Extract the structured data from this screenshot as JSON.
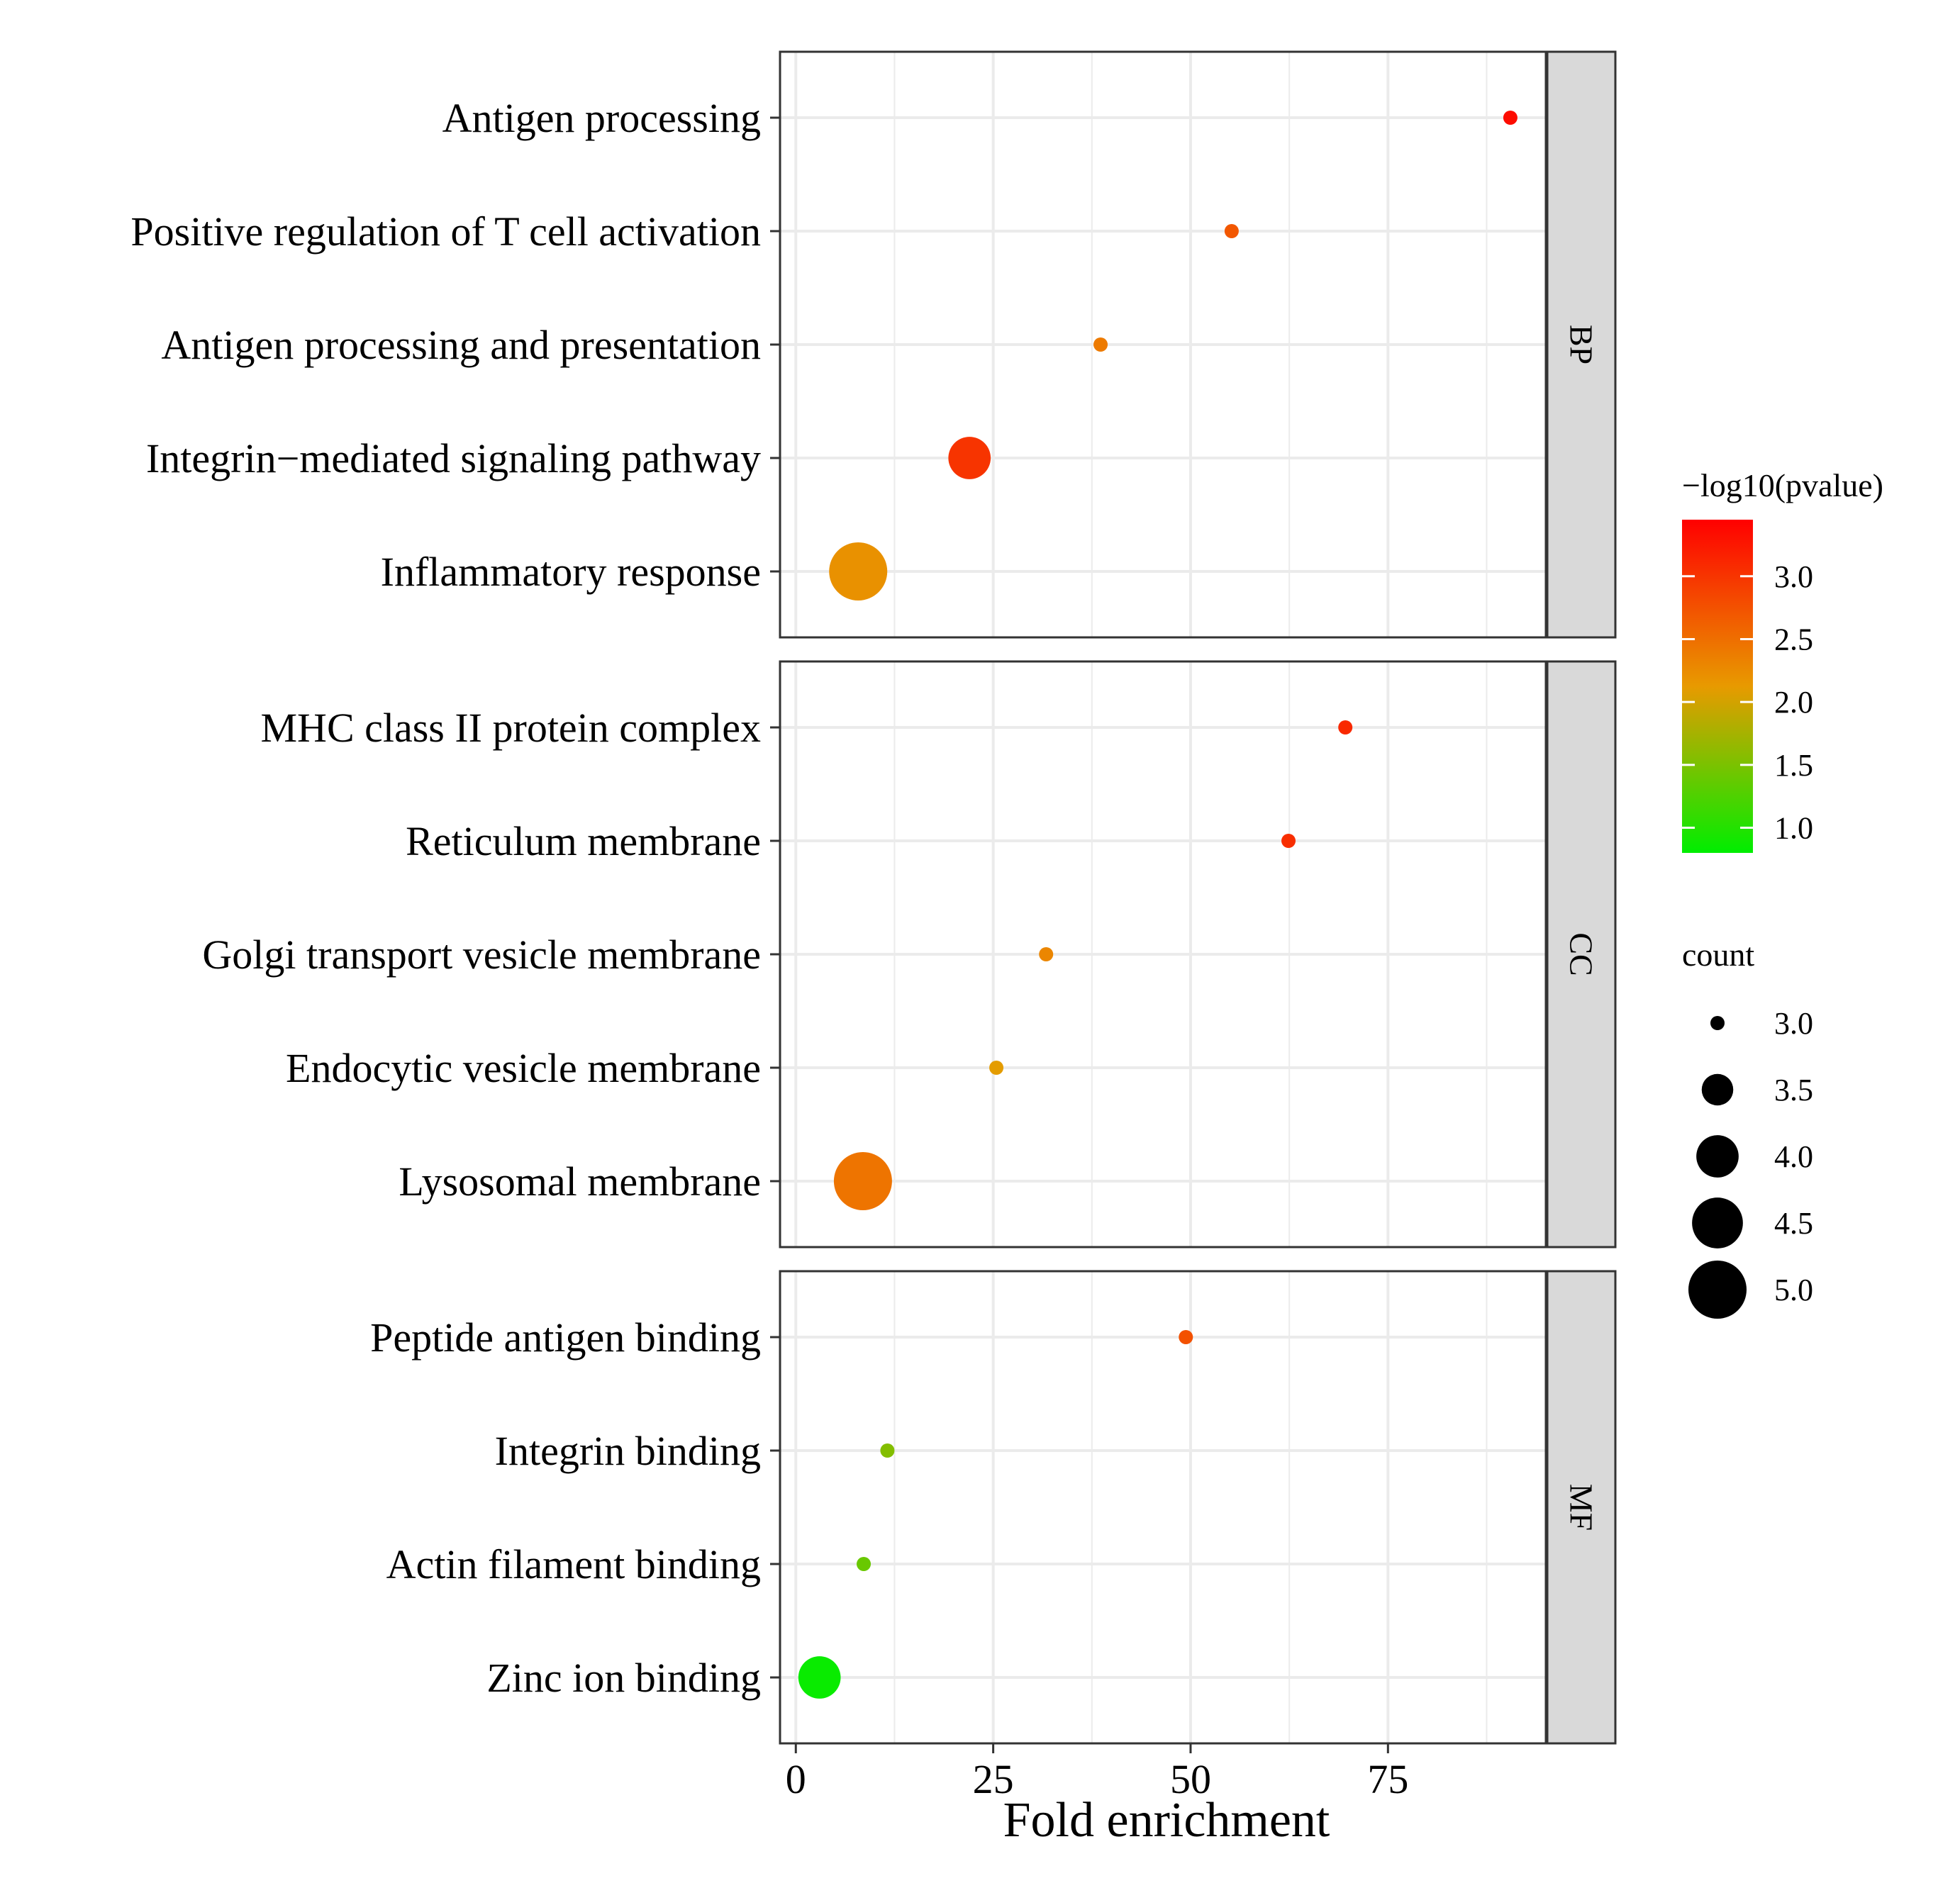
{
  "chart_data": {
    "type": "scatter",
    "xlabel": "Fold enrichment",
    "xlim": [
      -2,
      95
    ],
    "xticks": [
      0,
      25,
      50,
      75
    ],
    "facets": [
      {
        "name": "BP",
        "terms": [
          {
            "label": "Antigen processing",
            "fold_enrichment": 90.5,
            "neg_log10_pvalue": 3.35,
            "count": 3
          },
          {
            "label": "Positive regulation of T cell activation",
            "fold_enrichment": 55.2,
            "neg_log10_pvalue": 2.7,
            "count": 3
          },
          {
            "label": "Antigen processing and presentation",
            "fold_enrichment": 38.6,
            "neg_log10_pvalue": 2.4,
            "count": 3
          },
          {
            "label": "Integrin−mediated signaling pathway",
            "fold_enrichment": 22.0,
            "neg_log10_pvalue": 3.0,
            "count": 4
          },
          {
            "label": "Inflammatory response",
            "fold_enrichment": 7.9,
            "neg_log10_pvalue": 2.2,
            "count": 5
          }
        ]
      },
      {
        "name": "CC",
        "terms": [
          {
            "label": "MHC class II protein complex",
            "fold_enrichment": 69.6,
            "neg_log10_pvalue": 3.1,
            "count": 3
          },
          {
            "label": "Reticulum membrane",
            "fold_enrichment": 62.4,
            "neg_log10_pvalue": 3.05,
            "count": 3
          },
          {
            "label": "Golgi transport vesicle membrane",
            "fold_enrichment": 31.7,
            "neg_log10_pvalue": 2.3,
            "count": 3
          },
          {
            "label": "Endocytic vesicle membrane",
            "fold_enrichment": 25.4,
            "neg_log10_pvalue": 2.1,
            "count": 3
          },
          {
            "label": "Lysosomal membrane",
            "fold_enrichment": 8.5,
            "neg_log10_pvalue": 2.45,
            "count": 5
          }
        ]
      },
      {
        "name": "MF",
        "terms": [
          {
            "label": "Peptide antigen binding",
            "fold_enrichment": 49.4,
            "neg_log10_pvalue": 2.75,
            "count": 3
          },
          {
            "label": "Integrin binding",
            "fold_enrichment": 11.6,
            "neg_log10_pvalue": 1.55,
            "count": 3
          },
          {
            "label": "Actin filament binding",
            "fold_enrichment": 8.6,
            "neg_log10_pvalue": 1.4,
            "count": 3
          },
          {
            "label": "Zinc ion binding",
            "fold_enrichment": 3.0,
            "neg_log10_pvalue": 0.85,
            "count": 4
          }
        ]
      }
    ],
    "color_legend": {
      "title": "−log10(pvalue)",
      "range": [
        0.8,
        3.45
      ],
      "ticks": [
        3.0,
        2.5,
        2.0,
        1.5,
        1.0
      ],
      "tick_labels": [
        "3.0",
        "2.5",
        "2.0",
        "1.5",
        "1.0"
      ],
      "low_color": "#00ee00",
      "mid_color": "#e89a00",
      "high_color": "#ff0000"
    },
    "size_legend": {
      "title": "count",
      "values": [
        3.0,
        3.5,
        4.0,
        4.5,
        5.0
      ],
      "tick_labels": [
        "3.0",
        "3.5",
        "4.0",
        "4.5",
        "5.0"
      ],
      "color": "#000000"
    }
  }
}
